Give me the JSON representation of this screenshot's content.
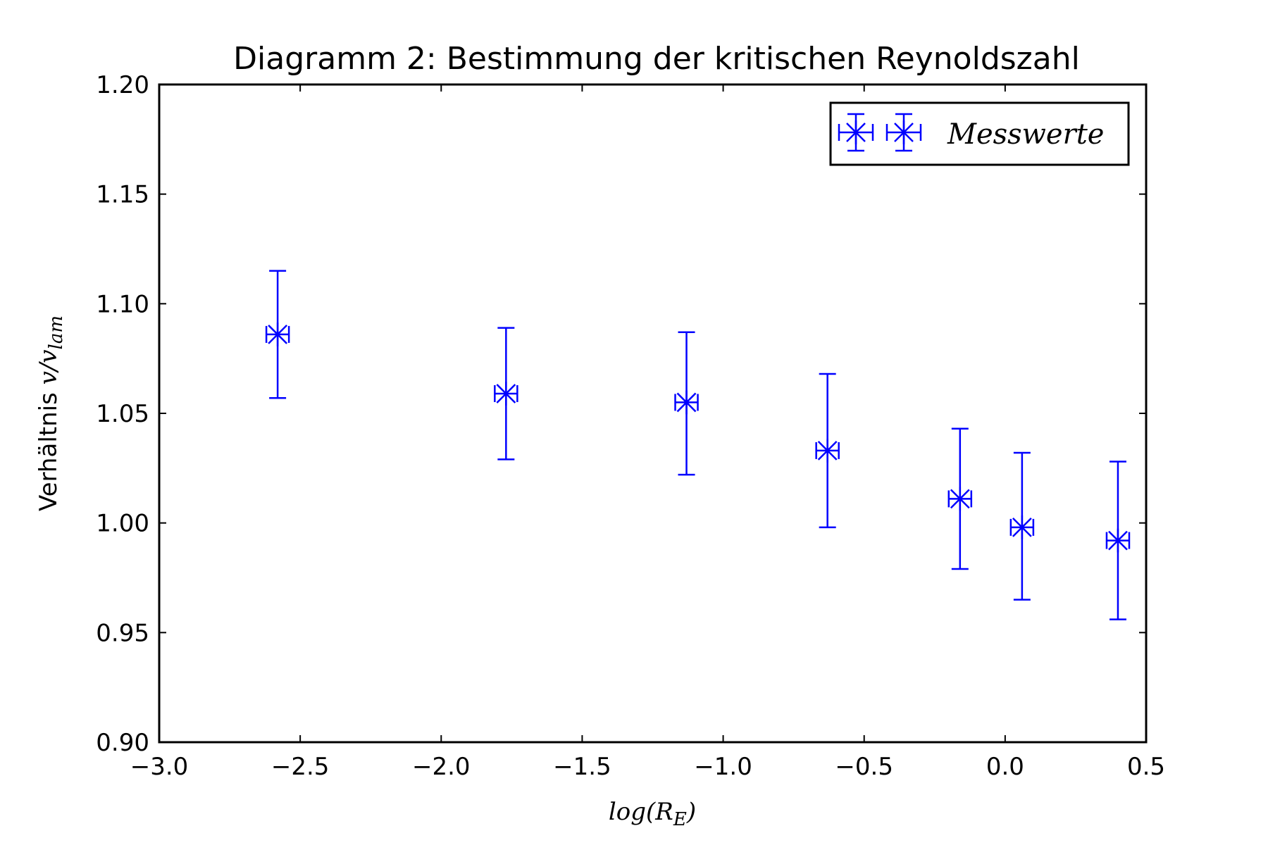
{
  "chart_data": {
    "type": "scatter",
    "title": "Diagramm 2: Bestimmung der kritischen Reynoldszahl",
    "xlabel": {
      "pre": "log(R",
      "sub": "E",
      "post": ")"
    },
    "ylabel": {
      "pre": "Verhältnis ",
      "math": "v/v",
      "sub": "lam"
    },
    "xlim": [
      -3.0,
      0.5
    ],
    "ylim": [
      0.9,
      1.2
    ],
    "xticks": [
      -3.0,
      -2.5,
      -2.0,
      -1.5,
      -1.0,
      -0.5,
      0.0,
      0.5
    ],
    "xtick_labels": [
      "−3.0",
      "−2.5",
      "−2.0",
      "−1.5",
      "−1.0",
      "−0.5",
      "0.0",
      "0.5"
    ],
    "yticks": [
      0.9,
      0.95,
      1.0,
      1.05,
      1.1,
      1.15,
      1.2
    ],
    "ytick_labels": [
      "0.90",
      "0.95",
      "1.00",
      "1.05",
      "1.10",
      "1.15",
      "1.20"
    ],
    "grid": false,
    "legend": {
      "position": "top-right",
      "entries": [
        "Messwerte"
      ]
    },
    "series": [
      {
        "name": "Messwerte",
        "color": "#0000ff",
        "marker": "x-star",
        "points": [
          {
            "x": -2.58,
            "y": 1.086,
            "xerr": 0.04,
            "yerr_low": 1.057,
            "yerr_high": 1.115
          },
          {
            "x": -1.77,
            "y": 1.059,
            "xerr": 0.04,
            "yerr_low": 1.029,
            "yerr_high": 1.089
          },
          {
            "x": -1.13,
            "y": 1.055,
            "xerr": 0.04,
            "yerr_low": 1.022,
            "yerr_high": 1.087
          },
          {
            "x": -0.63,
            "y": 1.033,
            "xerr": 0.04,
            "yerr_low": 0.998,
            "yerr_high": 1.068
          },
          {
            "x": -0.16,
            "y": 1.011,
            "xerr": 0.04,
            "yerr_low": 0.979,
            "yerr_high": 1.043
          },
          {
            "x": 0.06,
            "y": 0.998,
            "xerr": 0.04,
            "yerr_low": 0.965,
            "yerr_high": 1.032
          },
          {
            "x": 0.4,
            "y": 0.992,
            "xerr": 0.04,
            "yerr_low": 0.956,
            "yerr_high": 1.028
          }
        ]
      }
    ]
  }
}
